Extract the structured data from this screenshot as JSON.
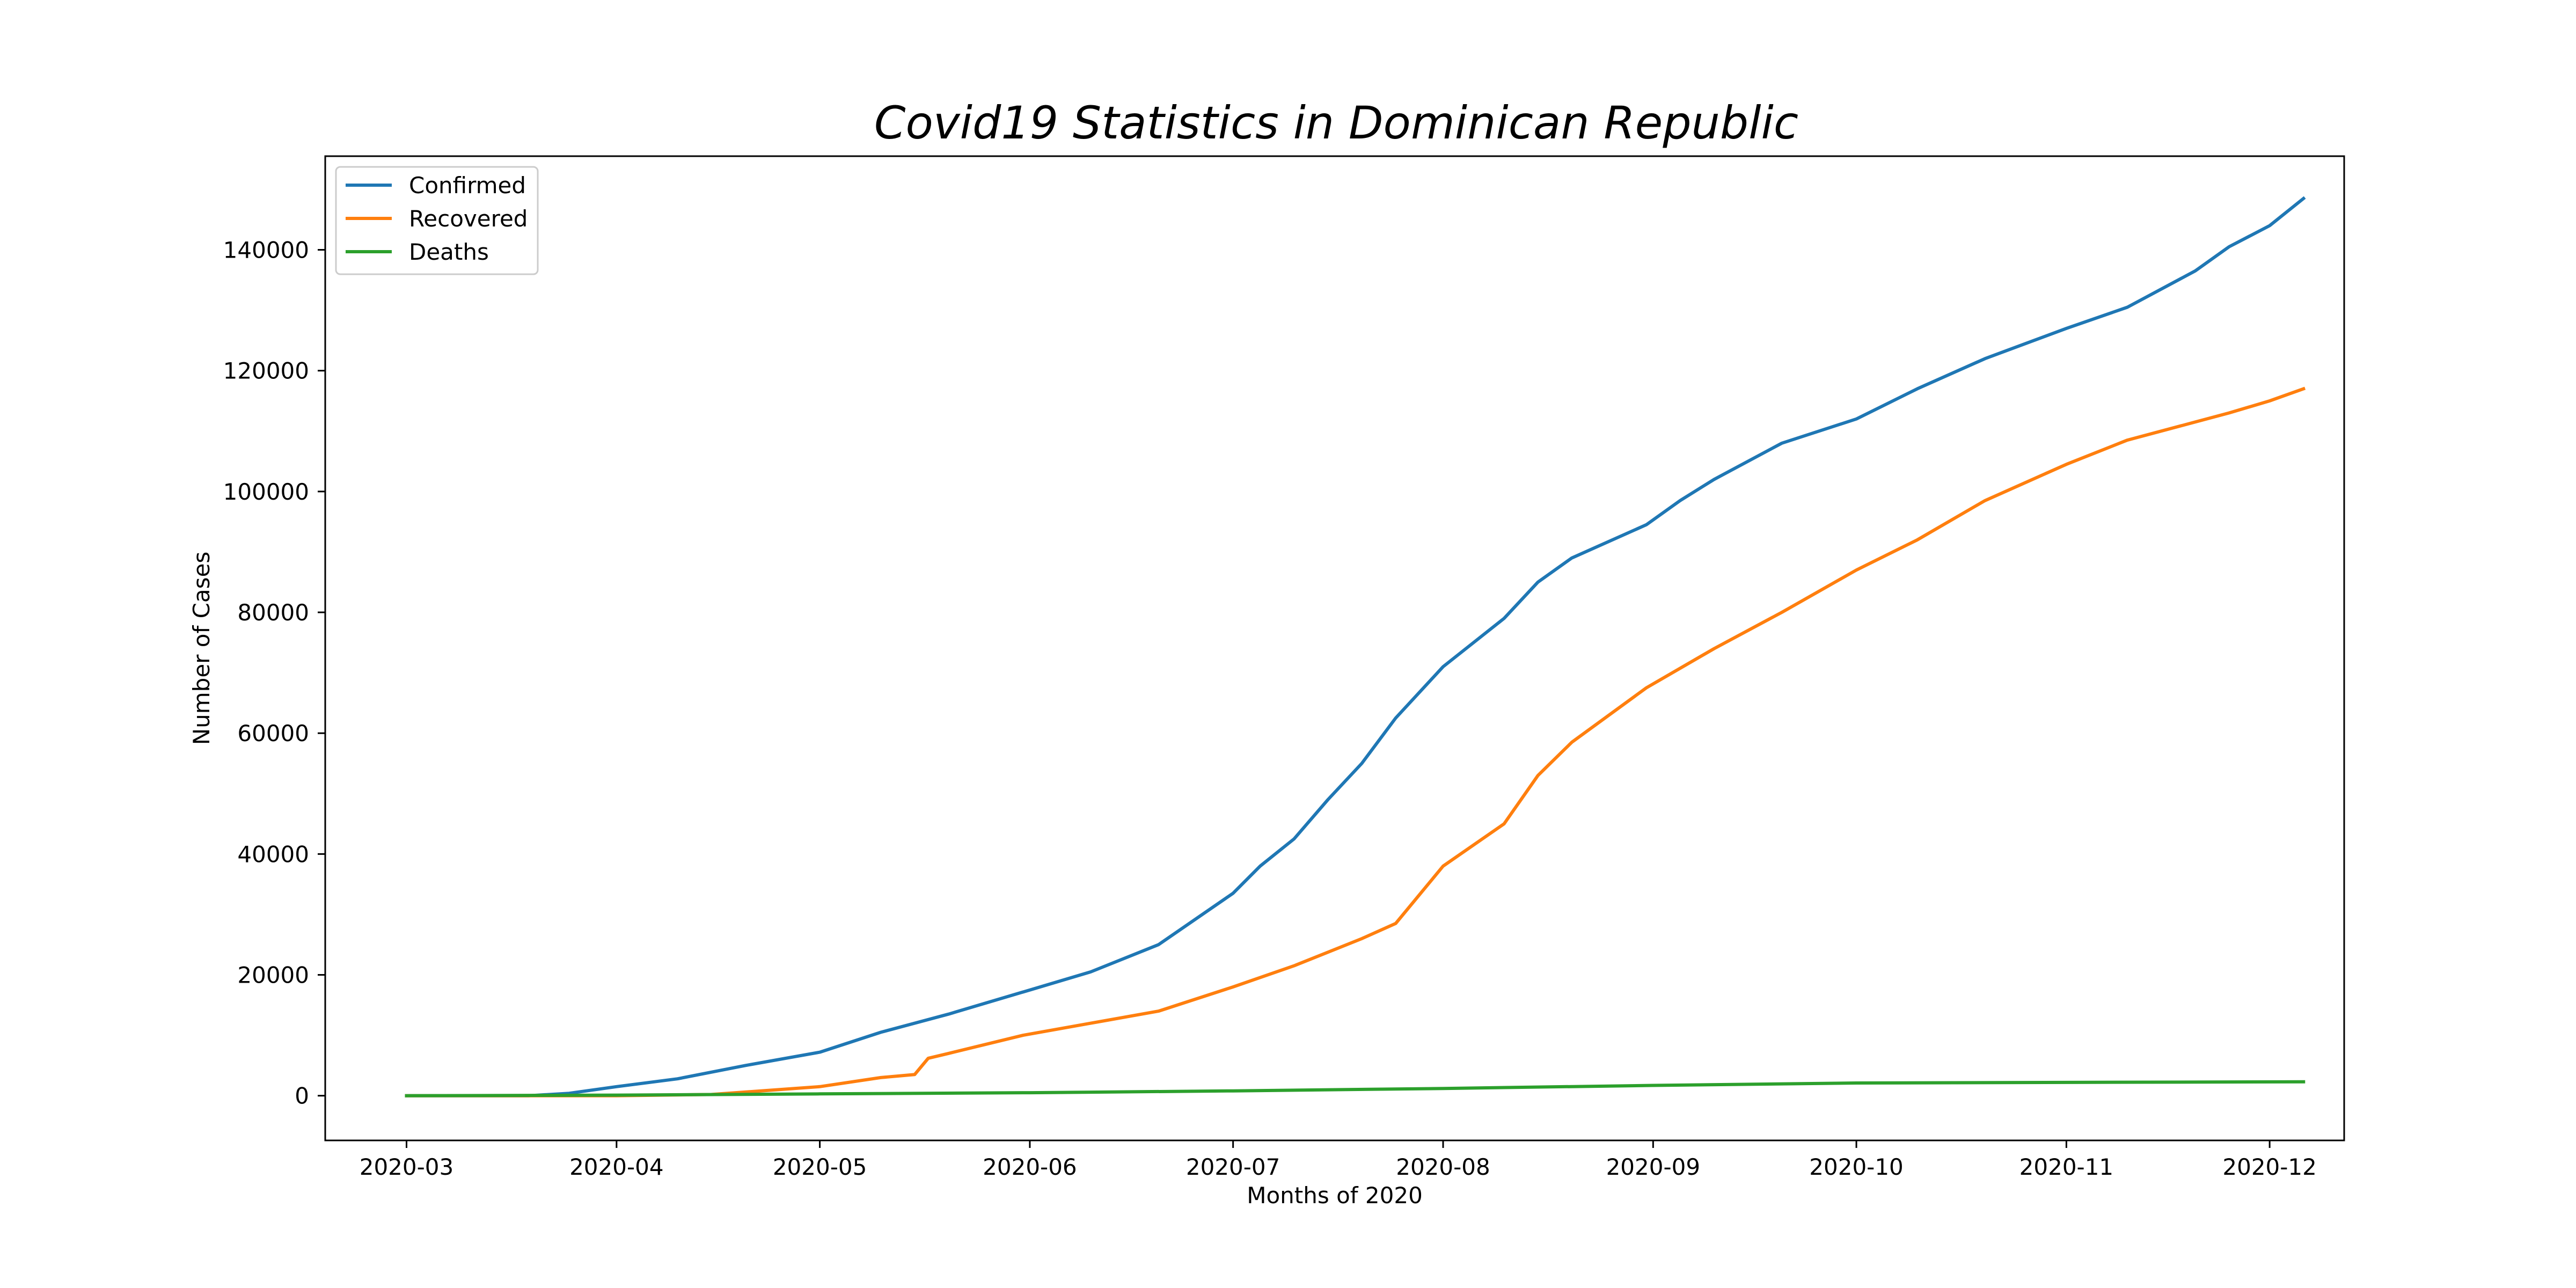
{
  "chart_data": {
    "type": "line",
    "title": "Covid19 Statistics in Dominican Republic",
    "xlabel": "Months of 2020",
    "ylabel": "Number of Cases",
    "x_axis": {
      "kind": "date",
      "range": [
        "2020-02-18",
        "2020-12-12"
      ],
      "ticks": [
        "2020-03-01",
        "2020-04-01",
        "2020-05-01",
        "2020-06-01",
        "2020-07-01",
        "2020-08-01",
        "2020-09-01",
        "2020-10-01",
        "2020-11-01",
        "2020-12-01"
      ],
      "tick_labels": [
        "2020-03",
        "2020-04",
        "2020-05",
        "2020-06",
        "2020-07",
        "2020-08",
        "2020-09",
        "2020-10",
        "2020-11",
        "2020-12"
      ]
    },
    "y_axis": {
      "range": [
        -7400,
        155500
      ],
      "ticks": [
        0,
        20000,
        40000,
        60000,
        80000,
        100000,
        120000,
        140000
      ],
      "tick_labels": [
        "0",
        "20000",
        "40000",
        "60000",
        "80000",
        "100000",
        "120000",
        "140000"
      ]
    },
    "grid": false,
    "legend_position": "top-left",
    "series": [
      {
        "name": "Confirmed",
        "color": "#1f77b4",
        "points": [
          [
            "2020-03-01",
            0
          ],
          [
            "2020-03-19",
            0
          ],
          [
            "2020-03-25",
            400
          ],
          [
            "2020-04-01",
            1500
          ],
          [
            "2020-04-10",
            2800
          ],
          [
            "2020-04-20",
            5000
          ],
          [
            "2020-05-01",
            7200
          ],
          [
            "2020-05-10",
            10500
          ],
          [
            "2020-05-20",
            13500
          ],
          [
            "2020-06-01",
            17500
          ],
          [
            "2020-06-10",
            20500
          ],
          [
            "2020-06-20",
            25000
          ],
          [
            "2020-07-01",
            33500
          ],
          [
            "2020-07-05",
            38000
          ],
          [
            "2020-07-10",
            42500
          ],
          [
            "2020-07-15",
            49000
          ],
          [
            "2020-07-20",
            55000
          ],
          [
            "2020-07-25",
            62500
          ],
          [
            "2020-08-01",
            71000
          ],
          [
            "2020-08-10",
            79000
          ],
          [
            "2020-08-15",
            85000
          ],
          [
            "2020-08-20",
            89000
          ],
          [
            "2020-08-31",
            94500
          ],
          [
            "2020-09-05",
            98500
          ],
          [
            "2020-09-10",
            102000
          ],
          [
            "2020-09-20",
            108000
          ],
          [
            "2020-10-01",
            112000
          ],
          [
            "2020-10-10",
            117000
          ],
          [
            "2020-10-20",
            122000
          ],
          [
            "2020-11-01",
            127000
          ],
          [
            "2020-11-10",
            130500
          ],
          [
            "2020-11-20",
            136500
          ],
          [
            "2020-11-25",
            140500
          ],
          [
            "2020-12-01",
            144000
          ],
          [
            "2020-12-06",
            148500
          ]
        ]
      },
      {
        "name": "Recovered",
        "color": "#ff7f0e",
        "points": [
          [
            "2020-03-01",
            0
          ],
          [
            "2020-04-01",
            0
          ],
          [
            "2020-04-15",
            200
          ],
          [
            "2020-05-01",
            1500
          ],
          [
            "2020-05-10",
            3000
          ],
          [
            "2020-05-15",
            3500
          ],
          [
            "2020-05-17",
            6200
          ],
          [
            "2020-05-20",
            7000
          ],
          [
            "2020-05-31",
            10000
          ],
          [
            "2020-06-10",
            12000
          ],
          [
            "2020-06-20",
            14000
          ],
          [
            "2020-07-01",
            18000
          ],
          [
            "2020-07-10",
            21500
          ],
          [
            "2020-07-20",
            26000
          ],
          [
            "2020-07-25",
            28500
          ],
          [
            "2020-08-01",
            38000
          ],
          [
            "2020-08-10",
            45000
          ],
          [
            "2020-08-15",
            53000
          ],
          [
            "2020-08-20",
            58500
          ],
          [
            "2020-08-31",
            67500
          ],
          [
            "2020-09-10",
            74000
          ],
          [
            "2020-09-20",
            80000
          ],
          [
            "2020-10-01",
            87000
          ],
          [
            "2020-10-10",
            92000
          ],
          [
            "2020-10-20",
            98500
          ],
          [
            "2020-11-01",
            104500
          ],
          [
            "2020-11-10",
            108500
          ],
          [
            "2020-11-20",
            111500
          ],
          [
            "2020-11-25",
            113000
          ],
          [
            "2020-12-01",
            115000
          ],
          [
            "2020-12-06",
            117000
          ]
        ]
      },
      {
        "name": "Deaths",
        "color": "#2ca02c",
        "points": [
          [
            "2020-03-01",
            0
          ],
          [
            "2020-04-01",
            100
          ],
          [
            "2020-05-01",
            300
          ],
          [
            "2020-06-01",
            500
          ],
          [
            "2020-07-01",
            800
          ],
          [
            "2020-08-01",
            1200
          ],
          [
            "2020-09-01",
            1700
          ],
          [
            "2020-10-01",
            2100
          ],
          [
            "2020-11-01",
            2200
          ],
          [
            "2020-12-06",
            2300
          ]
        ]
      }
    ]
  }
}
